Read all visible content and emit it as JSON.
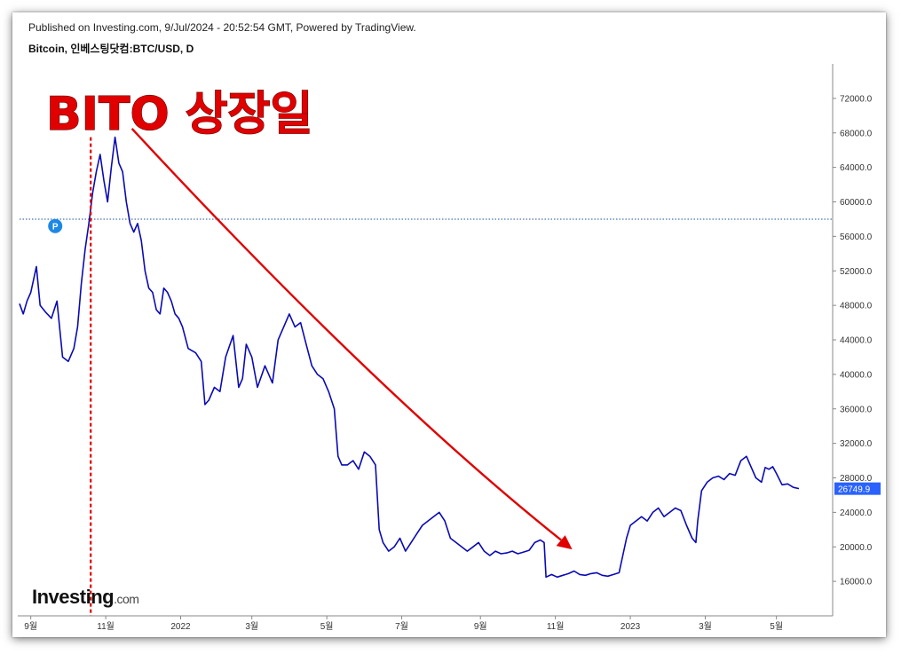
{
  "header": {
    "published": "Published on Investing.com, 9/Jul/2024 - 20:52:54 GMT, Powered by TradingView.",
    "symbol": "Bitcoin, 인베스팅닷컴:BTC/USD, D"
  },
  "annotation": {
    "text": "BITO 상장일",
    "color": "#e00000"
  },
  "logo": {
    "name": "Investing",
    "suffix": ".com"
  },
  "badge_letter": "P",
  "colors": {
    "price_line": "#0a0ab4",
    "arrow": "#e00000",
    "last_price_bg": "#2962ff",
    "reference_line": "#1a4f9c"
  },
  "chart_data": {
    "type": "line",
    "title": "Bitcoin, 인베스팅닷컴:BTC/USD, D",
    "xlabel": "",
    "ylabel": "",
    "ylim": [
      12000,
      76000
    ],
    "xlim": [
      0,
      21.7
    ],
    "y_ticks": [
      "16000.0",
      "20000.0",
      "24000.0",
      "28000.0",
      "32000.0",
      "36000.0",
      "40000.0",
      "44000.0",
      "48000.0",
      "52000.0",
      "56000.0",
      "60000.0",
      "64000.0",
      "68000.0",
      "72000.0"
    ],
    "x_ticks": [
      {
        "label": "9월",
        "x": 0.3
      },
      {
        "label": "11월",
        "x": 2.3
      },
      {
        "label": "2022",
        "x": 4.3
      },
      {
        "label": "3월",
        "x": 6.2
      },
      {
        "label": "5월",
        "x": 8.2
      },
      {
        "label": "7월",
        "x": 10.2
      },
      {
        "label": "9월",
        "x": 12.3
      },
      {
        "label": "11월",
        "x": 14.3
      },
      {
        "label": "2023",
        "x": 16.3
      },
      {
        "label": "3월",
        "x": 18.3
      },
      {
        "label": "5월",
        "x": 20.2
      }
    ],
    "reference_level": 58000,
    "last_price": "26749.9",
    "last_value": 26750,
    "bito_listing_x": 1.9,
    "series": [
      {
        "values": [
          [
            0.0,
            48200
          ],
          [
            0.1,
            47000
          ],
          [
            0.2,
            48500
          ],
          [
            0.3,
            49500
          ],
          [
            0.45,
            52500
          ],
          [
            0.55,
            48000
          ],
          [
            0.7,
            47200
          ],
          [
            0.85,
            46500
          ],
          [
            1.0,
            48500
          ],
          [
            1.15,
            42000
          ],
          [
            1.3,
            41500
          ],
          [
            1.45,
            43000
          ],
          [
            1.55,
            45500
          ],
          [
            1.65,
            50500
          ],
          [
            1.75,
            54500
          ],
          [
            1.85,
            57500
          ],
          [
            1.95,
            61000
          ],
          [
            2.05,
            63500
          ],
          [
            2.15,
            65500
          ],
          [
            2.25,
            62500
          ],
          [
            2.35,
            60000
          ],
          [
            2.45,
            64000
          ],
          [
            2.55,
            67500
          ],
          [
            2.65,
            64500
          ],
          [
            2.75,
            63500
          ],
          [
            2.85,
            60000
          ],
          [
            2.95,
            57500
          ],
          [
            3.05,
            56500
          ],
          [
            3.15,
            57500
          ],
          [
            3.25,
            55500
          ],
          [
            3.35,
            52000
          ],
          [
            3.45,
            50000
          ],
          [
            3.55,
            49500
          ],
          [
            3.65,
            47500
          ],
          [
            3.75,
            47000
          ],
          [
            3.85,
            50000
          ],
          [
            3.95,
            49500
          ],
          [
            4.05,
            48500
          ],
          [
            4.15,
            47000
          ],
          [
            4.25,
            46500
          ],
          [
            4.35,
            45500
          ],
          [
            4.5,
            43000
          ],
          [
            4.7,
            42500
          ],
          [
            4.85,
            41500
          ],
          [
            4.95,
            36500
          ],
          [
            5.05,
            37000
          ],
          [
            5.2,
            38500
          ],
          [
            5.35,
            38000
          ],
          [
            5.5,
            42000
          ],
          [
            5.7,
            44500
          ],
          [
            5.85,
            38500
          ],
          [
            5.95,
            39500
          ],
          [
            6.05,
            43500
          ],
          [
            6.2,
            42000
          ],
          [
            6.35,
            38500
          ],
          [
            6.55,
            41000
          ],
          [
            6.75,
            39000
          ],
          [
            6.9,
            44000
          ],
          [
            7.05,
            45500
          ],
          [
            7.2,
            47000
          ],
          [
            7.35,
            45500
          ],
          [
            7.5,
            46000
          ],
          [
            7.65,
            43500
          ],
          [
            7.8,
            41000
          ],
          [
            7.95,
            40000
          ],
          [
            8.1,
            39500
          ],
          [
            8.25,
            38000
          ],
          [
            8.4,
            36000
          ],
          [
            8.5,
            30500
          ],
          [
            8.6,
            29500
          ],
          [
            8.75,
            29500
          ],
          [
            8.9,
            30000
          ],
          [
            9.05,
            29000
          ],
          [
            9.2,
            31000
          ],
          [
            9.35,
            30500
          ],
          [
            9.5,
            29500
          ],
          [
            9.6,
            22000
          ],
          [
            9.7,
            20500
          ],
          [
            9.85,
            19500
          ],
          [
            10.0,
            20000
          ],
          [
            10.15,
            21000
          ],
          [
            10.3,
            19500
          ],
          [
            10.45,
            20500
          ],
          [
            10.6,
            21500
          ],
          [
            10.75,
            22500
          ],
          [
            10.9,
            23000
          ],
          [
            11.05,
            23500
          ],
          [
            11.2,
            24000
          ],
          [
            11.35,
            23000
          ],
          [
            11.5,
            21000
          ],
          [
            11.65,
            20500
          ],
          [
            11.8,
            20000
          ],
          [
            11.95,
            19500
          ],
          [
            12.1,
            20000
          ],
          [
            12.25,
            20500
          ],
          [
            12.4,
            19500
          ],
          [
            12.55,
            19000
          ],
          [
            12.7,
            19500
          ],
          [
            12.85,
            19200
          ],
          [
            13.0,
            19300
          ],
          [
            13.15,
            19500
          ],
          [
            13.3,
            19200
          ],
          [
            13.45,
            19400
          ],
          [
            13.6,
            19600
          ],
          [
            13.75,
            20500
          ],
          [
            13.9,
            20800
          ],
          [
            14.0,
            20500
          ],
          [
            14.05,
            16500
          ],
          [
            14.2,
            16800
          ],
          [
            14.35,
            16500
          ],
          [
            14.5,
            16700
          ],
          [
            14.65,
            16900
          ],
          [
            14.8,
            17200
          ],
          [
            14.95,
            16800
          ],
          [
            15.1,
            16700
          ],
          [
            15.25,
            16900
          ],
          [
            15.4,
            17000
          ],
          [
            15.55,
            16700
          ],
          [
            15.7,
            16600
          ],
          [
            15.85,
            16800
          ],
          [
            16.0,
            17000
          ],
          [
            16.1,
            19000
          ],
          [
            16.2,
            21000
          ],
          [
            16.3,
            22500
          ],
          [
            16.45,
            23000
          ],
          [
            16.6,
            23500
          ],
          [
            16.75,
            23000
          ],
          [
            16.9,
            24000
          ],
          [
            17.05,
            24500
          ],
          [
            17.2,
            23500
          ],
          [
            17.35,
            24000
          ],
          [
            17.5,
            24500
          ],
          [
            17.65,
            24200
          ],
          [
            17.8,
            22500
          ],
          [
            17.95,
            21000
          ],
          [
            18.05,
            20500
          ],
          [
            18.1,
            23000
          ],
          [
            18.2,
            26500
          ],
          [
            18.35,
            27500
          ],
          [
            18.5,
            28000
          ],
          [
            18.65,
            28200
          ],
          [
            18.8,
            27800
          ],
          [
            18.95,
            28500
          ],
          [
            19.1,
            28300
          ],
          [
            19.25,
            30000
          ],
          [
            19.4,
            30500
          ],
          [
            19.5,
            29500
          ],
          [
            19.65,
            28000
          ],
          [
            19.8,
            27500
          ],
          [
            19.9,
            29200
          ],
          [
            20.0,
            29000
          ],
          [
            20.1,
            29300
          ],
          [
            20.2,
            28500
          ],
          [
            20.35,
            27200
          ],
          [
            20.5,
            27300
          ],
          [
            20.65,
            26900
          ],
          [
            20.8,
            26750
          ]
        ]
      }
    ]
  }
}
